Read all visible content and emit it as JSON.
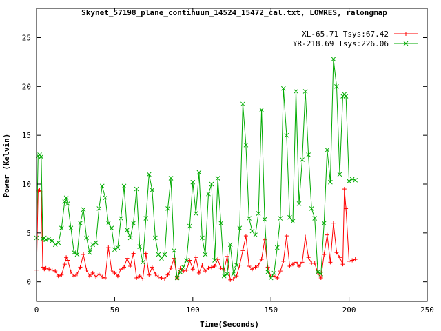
{
  "chart_data": {
    "type": "line",
    "title": "Skynet_57198_plane_continuum_14524_15472_cal.txt, LOWRES, ralongmap",
    "xlabel": "Time(Seconds)",
    "ylabel": "Power (Kelvin)",
    "xlim": [
      0,
      250
    ],
    "ylim": [
      -2,
      28
    ],
    "xticks": [
      0,
      50,
      100,
      150,
      200,
      250
    ],
    "yticks": [
      0,
      5,
      10,
      15,
      20,
      25
    ],
    "grid": false,
    "legend_position": "top-right",
    "series": [
      {
        "name": "XL-65.71 Tsys:67.42",
        "color": "#ff0000",
        "marker": "plus",
        "x": [
          0,
          1,
          2,
          3,
          4,
          5,
          6,
          8,
          10,
          12,
          14,
          16,
          18,
          19,
          20,
          22,
          24,
          26,
          28,
          30,
          32,
          34,
          36,
          38,
          40,
          42,
          44,
          46,
          48,
          50,
          52,
          54,
          56,
          58,
          60,
          62,
          64,
          66,
          68,
          70,
          72,
          74,
          76,
          78,
          80,
          82,
          84,
          86,
          88,
          90,
          92,
          94,
          96,
          98,
          100,
          102,
          104,
          106,
          108,
          110,
          112,
          114,
          116,
          118,
          120,
          122,
          124,
          126,
          128,
          130,
          132,
          134,
          136,
          138,
          140,
          142,
          144,
          146,
          148,
          150,
          152,
          154,
          156,
          158,
          160,
          162,
          164,
          166,
          168,
          170,
          172,
          174,
          176,
          178,
          180,
          182,
          184,
          186,
          188,
          190,
          192,
          194,
          196,
          197,
          198,
          200,
          202,
          204
        ],
        "y": [
          1.2,
          9.3,
          9.4,
          9.2,
          1.5,
          1.3,
          1.4,
          1.3,
          1.2,
          1.1,
          0.6,
          0.7,
          1.8,
          2.5,
          2.2,
          1.0,
          0.6,
          0.8,
          1.5,
          2.8,
          1.2,
          0.6,
          0.9,
          0.5,
          0.8,
          0.5,
          0.4,
          3.5,
          1.2,
          0.9,
          0.6,
          1.3,
          1.5,
          2.4,
          1.6,
          2.9,
          0.4,
          0.6,
          0.3,
          2.9,
          0.7,
          1.5,
          0.8,
          0.5,
          0.4,
          0.3,
          0.7,
          1.4,
          2.4,
          0.4,
          1.4,
          1.1,
          1.2,
          2.2,
          1.3,
          2.5,
          0.9,
          1.7,
          1.1,
          1.4,
          1.5,
          1.6,
          2.3,
          1.4,
          1.2,
          2.6,
          0.2,
          0.3,
          0.6,
          1.7,
          3.2,
          4.7,
          1.6,
          1.3,
          1.5,
          1.7,
          2.3,
          4.3,
          1.5,
          0.5,
          0.6,
          0.4,
          1.1,
          2.1,
          4.7,
          1.6,
          1.8,
          2.0,
          1.6,
          2.0,
          4.6,
          2.5,
          1.9,
          1.9,
          0.9,
          0.4,
          2.8,
          4.8,
          2.0,
          6.0,
          3.0,
          2.5,
          1.8,
          9.5,
          7.5,
          2.1,
          2.2,
          2.3
        ]
      },
      {
        "name": "YR-218.69 Tsys:226.06",
        "color": "#00aa00",
        "marker": "x",
        "x": [
          0,
          1,
          2,
          3,
          4,
          5,
          6,
          8,
          10,
          12,
          14,
          16,
          18,
          19,
          20,
          22,
          24,
          26,
          28,
          30,
          32,
          34,
          36,
          38,
          40,
          42,
          44,
          46,
          48,
          50,
          52,
          54,
          56,
          58,
          60,
          62,
          64,
          66,
          68,
          70,
          72,
          74,
          76,
          78,
          80,
          82,
          84,
          86,
          88,
          90,
          92,
          94,
          96,
          98,
          100,
          102,
          104,
          106,
          108,
          110,
          112,
          114,
          116,
          118,
          120,
          122,
          124,
          126,
          128,
          130,
          132,
          134,
          136,
          138,
          140,
          142,
          144,
          146,
          148,
          150,
          152,
          154,
          156,
          158,
          160,
          162,
          164,
          166,
          168,
          170,
          172,
          174,
          176,
          178,
          180,
          182,
          184,
          186,
          188,
          190,
          192,
          194,
          196,
          197,
          198,
          200,
          202,
          204
        ],
        "y": [
          4.5,
          12.9,
          13.0,
          12.8,
          4.4,
          4.5,
          4.3,
          4.4,
          4.2,
          3.8,
          4.0,
          5.5,
          8.2,
          8.6,
          8.0,
          5.5,
          3.0,
          2.8,
          6.0,
          7.4,
          4.5,
          3.0,
          3.8,
          4.0,
          7.5,
          9.8,
          8.6,
          6.0,
          5.5,
          3.3,
          3.5,
          6.5,
          9.8,
          5.3,
          4.5,
          6.0,
          9.5,
          3.6,
          2.0,
          6.5,
          11.0,
          9.4,
          4.5,
          2.8,
          2.4,
          2.8,
          7.5,
          10.6,
          3.2,
          0.4,
          1.0,
          1.5,
          2.2,
          5.7,
          10.2,
          7.0,
          11.2,
          4.5,
          2.8,
          9.0,
          10.0,
          2.2,
          10.6,
          6.0,
          0.6,
          0.8,
          3.8,
          0.8,
          1.7,
          5.5,
          18.2,
          14.0,
          6.5,
          5.2,
          4.8,
          7.0,
          17.6,
          6.4,
          1.0,
          0.4,
          0.9,
          3.5,
          6.5,
          19.8,
          15.0,
          6.6,
          6.2,
          19.5,
          8.0,
          12.5,
          19.5,
          13.0,
          7.5,
          6.5,
          1.0,
          0.8,
          6.0,
          13.5,
          10.2,
          22.8,
          20.0,
          11.0,
          19.0,
          19.2,
          19.0,
          10.3,
          10.5,
          10.4
        ]
      }
    ]
  }
}
